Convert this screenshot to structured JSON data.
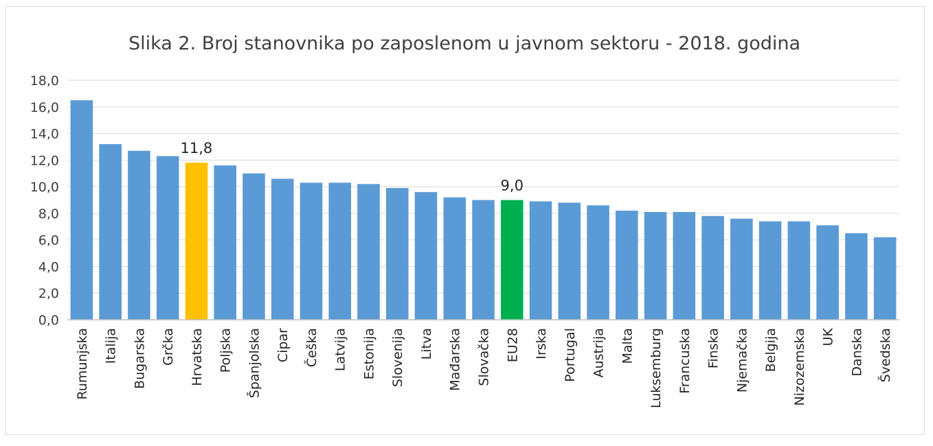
{
  "chart_data": {
    "type": "bar",
    "title": "Slika 2. Broj stanovnika po zaposlenom u javnom sektoru - 2018. godina",
    "xlabel": "",
    "ylabel": "",
    "ylim": [
      0,
      18
    ],
    "yticks": [
      "0,0",
      "2,0",
      "4,0",
      "6,0",
      "8,0",
      "10,0",
      "12,0",
      "14,0",
      "16,0",
      "18,0"
    ],
    "grid": true,
    "legend": "none",
    "categories": [
      "Rumunjska",
      "Italija",
      "Bugarska",
      "Grčka",
      "Hrvatska",
      "Poljska",
      "Španjolska",
      "Cipar",
      "Češka",
      "Latvija",
      "Estonija",
      "Slovenija",
      "Litva",
      "Mađarska",
      "Slovačka",
      "EU28",
      "Irska",
      "Portugal",
      "Austrija",
      "Malta",
      "Luksemburg",
      "Francuska",
      "Finska",
      "Njemačka",
      "Belgija",
      "Nizozemska",
      "UK",
      "Danska",
      "Švedska"
    ],
    "values": [
      16.5,
      13.2,
      12.7,
      12.3,
      11.8,
      11.6,
      11.0,
      10.6,
      10.3,
      10.3,
      10.2,
      9.9,
      9.6,
      9.2,
      9.0,
      9.0,
      8.9,
      8.8,
      8.6,
      8.2,
      8.1,
      8.1,
      7.8,
      7.6,
      7.4,
      7.4,
      7.1,
      6.5,
      6.2
    ],
    "bar_colors": {
      "default": "#5b9bd5",
      "Hrvatska": "#ffc000",
      "EU28": "#00b050"
    },
    "data_labels": {
      "Hrvatska": "11,8",
      "EU28": "9,0"
    }
  }
}
